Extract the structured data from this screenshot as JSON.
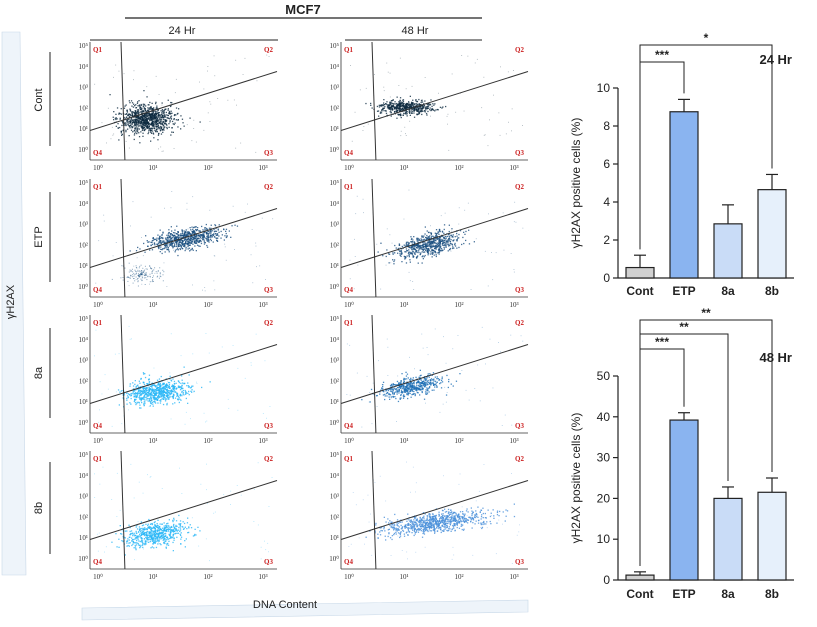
{
  "figure": {
    "cell_line": "MCF7",
    "timepoints": [
      "24 Hr",
      "48 Hr"
    ],
    "rows": [
      "Cont",
      "ETP",
      "8a",
      "8b"
    ],
    "y_axis_label": "γH2AX",
    "x_axis_label": "DNA Content",
    "quadrants": [
      "Q1",
      "Q2",
      "Q3",
      "Q4"
    ],
    "tick_labels": [
      "10⁰",
      "10¹",
      "10²",
      "10³"
    ],
    "colors": {
      "Cont": "#0d2a40",
      "ETP": "#1a4f80",
      "8a_24": "#29b6f6",
      "8a_48": "#1e6fb5",
      "8b_24": "#29b6f6",
      "8b_48": "#4a90d9"
    }
  },
  "chart_data": [
    {
      "type": "bar",
      "title": "24 Hr",
      "categories": [
        "Cont",
        "ETP",
        "8a",
        "8b"
      ],
      "values": [
        0.55,
        8.75,
        2.85,
        4.65
      ],
      "errors": [
        0.65,
        0.65,
        1.0,
        0.8
      ],
      "bar_colors": [
        "#d0d0d0",
        "#8ab4f0",
        "#c9dcf7",
        "#e6f0fb"
      ],
      "xlabel": "",
      "ylabel": "γH2AX positive cells (%)",
      "ylim": [
        0,
        10
      ],
      "yticks": [
        "0",
        "2",
        "4",
        "6",
        "8",
        "10"
      ],
      "significance": [
        {
          "from": "Cont",
          "to": "ETP",
          "label": "***"
        },
        {
          "from": "Cont",
          "to": "8b",
          "label": "*"
        }
      ]
    },
    {
      "type": "bar",
      "title": "48 Hr",
      "categories": [
        "Cont",
        "ETP",
        "8a",
        "8b"
      ],
      "values": [
        1.2,
        39.2,
        20.0,
        21.5
      ],
      "errors": [
        0.8,
        1.8,
        2.8,
        3.5
      ],
      "bar_colors": [
        "#d0d0d0",
        "#8ab4f0",
        "#c9dcf7",
        "#e6f0fb"
      ],
      "xlabel": "",
      "ylabel": "γH2AX positive cells (%)",
      "ylim": [
        0,
        50
      ],
      "yticks": [
        "0",
        "10",
        "20",
        "30",
        "40",
        "50"
      ],
      "significance": [
        {
          "from": "Cont",
          "to": "ETP",
          "label": "***"
        },
        {
          "from": "Cont",
          "to": "8a",
          "label": "**"
        },
        {
          "from": "Cont",
          "to": "8b",
          "label": "**"
        }
      ]
    }
  ]
}
